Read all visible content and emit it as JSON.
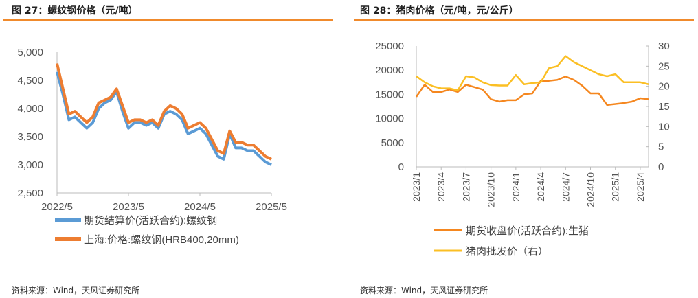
{
  "charts": [
    {
      "title": "图 27：螺纹钢价格（元/吨）",
      "source": "资料来源：Wind，天风证券研究所"
    },
    {
      "title": "图 28：猪肉价格（元/吨，元/公斤）",
      "source": "资料来源：Wind，天风证券研究所"
    }
  ],
  "chart_data": [
    {
      "type": "line",
      "title": "图 27：螺纹钢价格（元/吨）",
      "ylim": [
        2500,
        5000
      ],
      "yticks": [
        "5,000",
        "4,500",
        "4,000",
        "3,500",
        "3,000",
        "2,500"
      ],
      "xticks": [
        "2022/5",
        "2023/5",
        "2024/5",
        "2025/5"
      ],
      "x": [
        "2022/5",
        "2022/6",
        "2022/7",
        "2022/8",
        "2022/9",
        "2022/10",
        "2022/11",
        "2022/12",
        "2023/1",
        "2023/2",
        "2023/3",
        "2023/4",
        "2023/5",
        "2023/6",
        "2023/7",
        "2023/8",
        "2023/9",
        "2023/10",
        "2023/11",
        "2023/12",
        "2024/1",
        "2024/2",
        "2024/3",
        "2024/4",
        "2024/5",
        "2024/6",
        "2024/7",
        "2024/8",
        "2024/9",
        "2024/10",
        "2024/11",
        "2024/12",
        "2025/1",
        "2025/2",
        "2025/3",
        "2025/4",
        "2025/5"
      ],
      "legend": "bottom",
      "series": [
        {
          "name": "期货结算价(活跃合约):螺纹钢",
          "color": "#5b9bd5",
          "values": [
            4650,
            4250,
            3800,
            3850,
            3750,
            3650,
            3750,
            4000,
            4100,
            4150,
            4300,
            3950,
            3650,
            3750,
            3750,
            3700,
            3750,
            3650,
            3900,
            3950,
            3900,
            3800,
            3550,
            3600,
            3650,
            3550,
            3350,
            3150,
            3100,
            3550,
            3300,
            3300,
            3250,
            3250,
            3150,
            3050,
            3000
          ]
        },
        {
          "name": "上海:价格:螺纹钢(HRB400,20mm)",
          "color": "#ed7d31",
          "values": [
            4800,
            4350,
            3900,
            3950,
            3850,
            3750,
            3850,
            4100,
            4150,
            4200,
            4350,
            4050,
            3750,
            3800,
            3800,
            3750,
            3800,
            3700,
            3950,
            4050,
            4000,
            3900,
            3650,
            3700,
            3750,
            3650,
            3450,
            3250,
            3200,
            3600,
            3400,
            3400,
            3350,
            3350,
            3250,
            3150,
            3100
          ]
        }
      ]
    },
    {
      "type": "line",
      "title": "图 28：猪肉价格（元/吨，元/公斤）",
      "ylim": [
        0,
        25000
      ],
      "y2lim": [
        0,
        30
      ],
      "yticks": [
        "25000",
        "20000",
        "15000",
        "10000",
        "5000",
        "0"
      ],
      "y2ticks": [
        "30",
        "25",
        "20",
        "15",
        "10",
        "5",
        "0"
      ],
      "xticks": [
        "2023/1",
        "2023/4",
        "2023/7",
        "2023/10",
        "2024/1",
        "2024/4",
        "2024/7",
        "2024/10",
        "2025/1",
        "2025/4"
      ],
      "x": [
        "2023/1",
        "2023/2",
        "2023/3",
        "2023/4",
        "2023/5",
        "2023/6",
        "2023/7",
        "2023/8",
        "2023/9",
        "2023/10",
        "2023/11",
        "2023/12",
        "2024/1",
        "2024/2",
        "2024/3",
        "2024/4",
        "2024/5",
        "2024/6",
        "2024/7",
        "2024/8",
        "2024/9",
        "2024/10",
        "2024/11",
        "2024/12",
        "2025/1",
        "2025/2",
        "2025/3",
        "2025/4",
        "2025/5"
      ],
      "legend": "bottom",
      "series": [
        {
          "name": "期货收盘价(活跃合约):生猪",
          "axis": "left",
          "color": "#f5871f",
          "values": [
            14500,
            17000,
            15500,
            15500,
            16000,
            15500,
            17000,
            16500,
            16000,
            14000,
            13500,
            13800,
            13800,
            15000,
            15200,
            17800,
            17800,
            18000,
            18700,
            18000,
            16800,
            15200,
            15200,
            12800,
            13000,
            13200,
            13500,
            14200,
            14000
          ]
        },
        {
          "name": "猪肉批发价（右）",
          "axis": "right",
          "color": "#fbbf24",
          "values": [
            22.5,
            21,
            20,
            19.5,
            19.5,
            19,
            22.5,
            22.2,
            21,
            20.3,
            20.2,
            20.2,
            22.8,
            20.5,
            20.8,
            21,
            24.5,
            25,
            27.5,
            26,
            25,
            24,
            23,
            22.5,
            23,
            21,
            21,
            21,
            20.5
          ]
        }
      ]
    }
  ]
}
